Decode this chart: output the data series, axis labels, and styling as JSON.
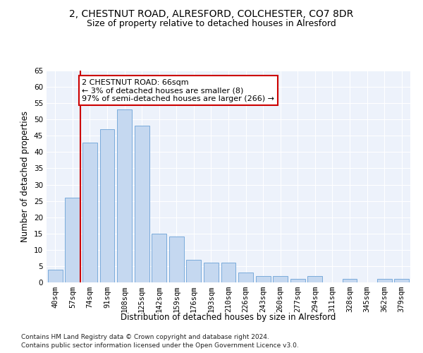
{
  "title1": "2, CHESTNUT ROAD, ALRESFORD, COLCHESTER, CO7 8DR",
  "title2": "Size of property relative to detached houses in Alresford",
  "xlabel": "Distribution of detached houses by size in Alresford",
  "ylabel": "Number of detached properties",
  "categories": [
    "40sqm",
    "57sqm",
    "74sqm",
    "91sqm",
    "108sqm",
    "125sqm",
    "142sqm",
    "159sqm",
    "176sqm",
    "193sqm",
    "210sqm",
    "226sqm",
    "243sqm",
    "260sqm",
    "277sqm",
    "294sqm",
    "311sqm",
    "328sqm",
    "345sqm",
    "362sqm",
    "379sqm"
  ],
  "values": [
    4,
    26,
    43,
    47,
    53,
    48,
    15,
    14,
    7,
    6,
    6,
    3,
    2,
    2,
    1,
    2,
    0,
    1,
    0,
    1,
    1
  ],
  "bar_color": "#c5d8f0",
  "bar_edge_color": "#7aabdb",
  "marker_color": "#cc0000",
  "annotation_text": "2 CHESTNUT ROAD: 66sqm\n← 3% of detached houses are smaller (8)\n97% of semi-detached houses are larger (266) →",
  "annotation_box_color": "#ffffff",
  "annotation_box_edge": "#cc0000",
  "ylim": [
    0,
    65
  ],
  "yticks": [
    0,
    5,
    10,
    15,
    20,
    25,
    30,
    35,
    40,
    45,
    50,
    55,
    60,
    65
  ],
  "background_color": "#edf2fb",
  "footnote1": "Contains HM Land Registry data © Crown copyright and database right 2024.",
  "footnote2": "Contains public sector information licensed under the Open Government Licence v3.0.",
  "title_fontsize": 10,
  "subtitle_fontsize": 9,
  "axis_label_fontsize": 8.5,
  "tick_fontsize": 7.5,
  "annot_fontsize": 8
}
